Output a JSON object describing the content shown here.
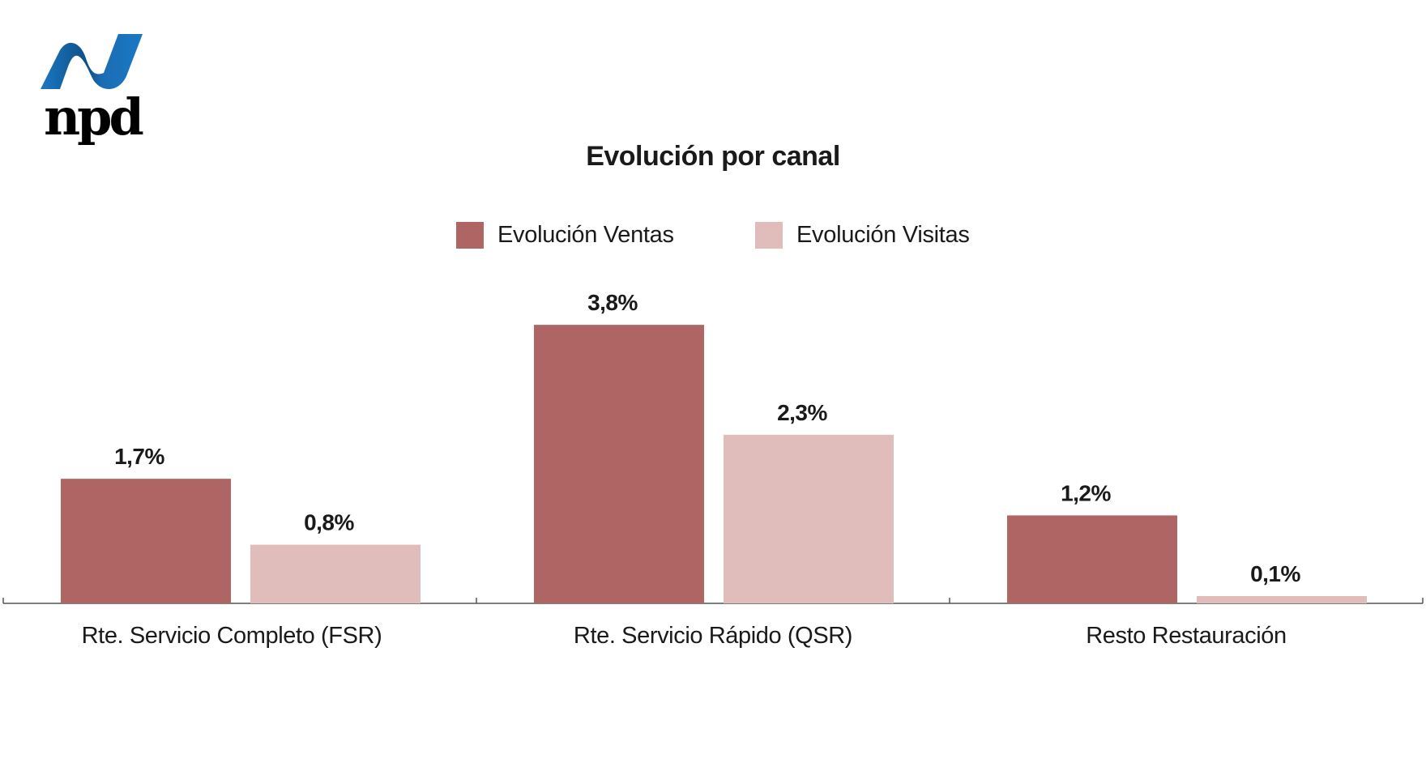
{
  "logo_text": "npd",
  "colors": {
    "ventas": "#b06565",
    "visitas": "#e0bcbb",
    "logo_blue": "#1b6fb8",
    "axis": "#555555"
  },
  "chart_data": {
    "type": "bar",
    "title": "Evolución por canal",
    "xlabel": "",
    "ylabel": "",
    "ylim": [
      0,
      4
    ],
    "grid": false,
    "legend_position": "top-center",
    "categories": [
      "Rte. Servicio Completo (FSR)",
      "Rte. Servicio Rápido (QSR)",
      "Resto Restauración"
    ],
    "series": [
      {
        "name": "Evolución Ventas",
        "values": [
          1.7,
          3.8,
          1.2
        ],
        "labels": [
          "1,7%",
          "3,8%",
          "1,2%"
        ]
      },
      {
        "name": "Evolución Visitas",
        "values": [
          0.8,
          2.3,
          0.1
        ],
        "labels": [
          "0,8%",
          "2,3%",
          "0,1%"
        ]
      }
    ]
  }
}
